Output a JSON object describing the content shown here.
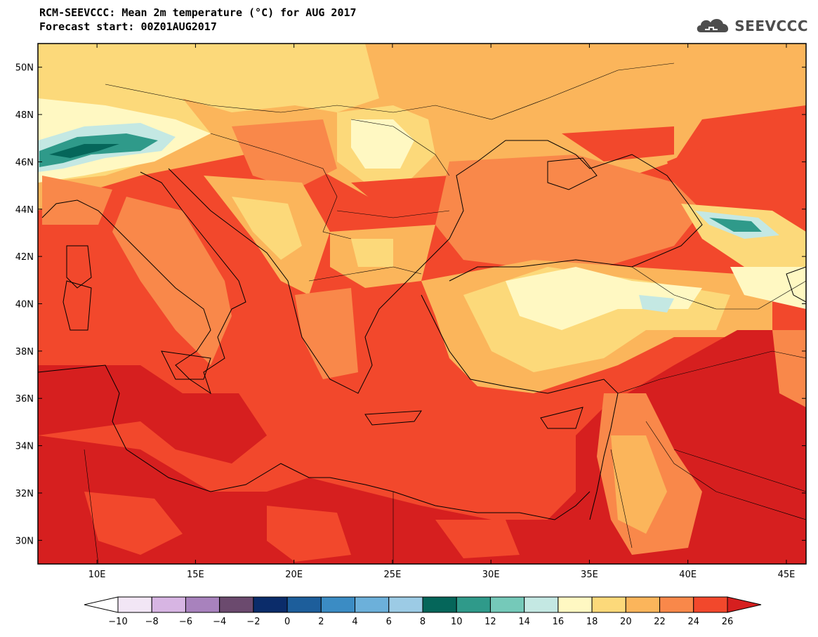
{
  "header": {
    "title": "RCM-SEEVCCC: Mean 2m temperature (°C) for AUG 2017",
    "subtitle": "Forecast start: 00Z01AUG2017",
    "logo_text": "SEEVCCC"
  },
  "map": {
    "lon_range": [
      7,
      46
    ],
    "lat_range": [
      29,
      51
    ],
    "lat_ticks": [
      "30N",
      "32N",
      "34N",
      "36N",
      "38N",
      "40N",
      "42N",
      "44N",
      "46N",
      "48N",
      "50N"
    ],
    "lon_ticks": [
      "10E",
      "15E",
      "20E",
      "25E",
      "30E",
      "35E",
      "40E",
      "45E"
    ]
  },
  "colorbar": {
    "levels": [
      "-10",
      "-8",
      "-6",
      "-4",
      "-2",
      "0",
      "2",
      "4",
      "6",
      "8",
      "10",
      "12",
      "14",
      "16",
      "18",
      "20",
      "22",
      "24",
      "26"
    ],
    "colors": [
      "#f2e6f5",
      "#d7b5e3",
      "#a882bd",
      "#6b4a6e",
      "#0b2c6a",
      "#1d5e9b",
      "#3b8cc4",
      "#6cb0da",
      "#9ccbe5",
      "#05665a",
      "#2f9a8a",
      "#75c9b9",
      "#c4e8e3",
      "#fff8c2",
      "#fcd97a",
      "#fbb55b",
      "#f9884a",
      "#f2482c"
    ],
    "under_color": "#ffffff",
    "over_color": "#d61f1f"
  },
  "legend_colors": {
    "hot": "#d61f1f",
    "warm": "#f2482c",
    "orange": "#f9884a",
    "light_orange": "#fbb55b",
    "yellow": "#fcd97a",
    "pale": "#fff8c2",
    "teal": "#2f9a8a"
  }
}
